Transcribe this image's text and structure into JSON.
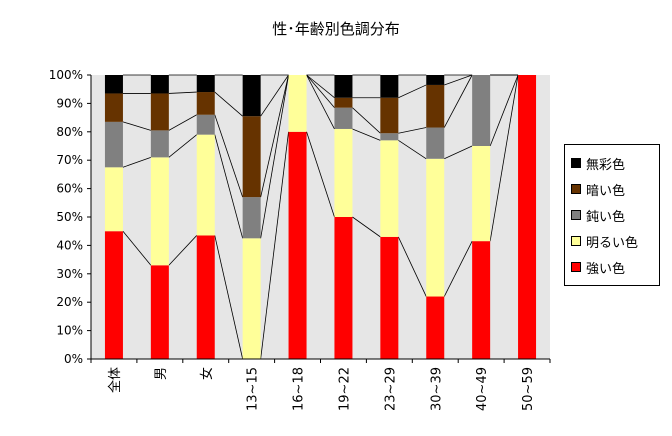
{
  "chart_data": {
    "type": "bar",
    "stacked": true,
    "title": "性･年齢別色調分布",
    "categories": [
      "全体",
      "男",
      "女",
      "13~15",
      "16~18",
      "19~22",
      "23~29",
      "30~39",
      "40~49",
      "50~59"
    ],
    "y_tick_labels": [
      "0%",
      "10%",
      "20%",
      "30%",
      "40%",
      "50%",
      "60%",
      "70%",
      "80%",
      "90%",
      "100%"
    ],
    "ylim": [
      0,
      100
    ],
    "grid": false,
    "legend_position": "right",
    "series": [
      {
        "name": "強い色",
        "color": "#ff0000",
        "values": [
          45,
          33,
          43.5,
          0,
          80,
          50,
          43,
          22,
          41.5,
          100
        ]
      },
      {
        "name": "明るい色",
        "color": "#ffff99",
        "values": [
          22.5,
          38,
          35.5,
          42.5,
          20,
          31,
          34,
          48.5,
          33.5,
          0
        ]
      },
      {
        "name": "鈍い色",
        "color": "#808080",
        "values": [
          16,
          9.5,
          7,
          14.5,
          0,
          7.5,
          2.5,
          11,
          25,
          0
        ]
      },
      {
        "name": "暗い色",
        "color": "#663300",
        "values": [
          10,
          13,
          8,
          28.5,
          0,
          3.5,
          12.5,
          15,
          0,
          0
        ]
      },
      {
        "name": "無彩色",
        "color": "#000000",
        "values": [
          6.5,
          6.5,
          6,
          14.5,
          0,
          8,
          8,
          3.5,
          0,
          0
        ]
      }
    ]
  }
}
